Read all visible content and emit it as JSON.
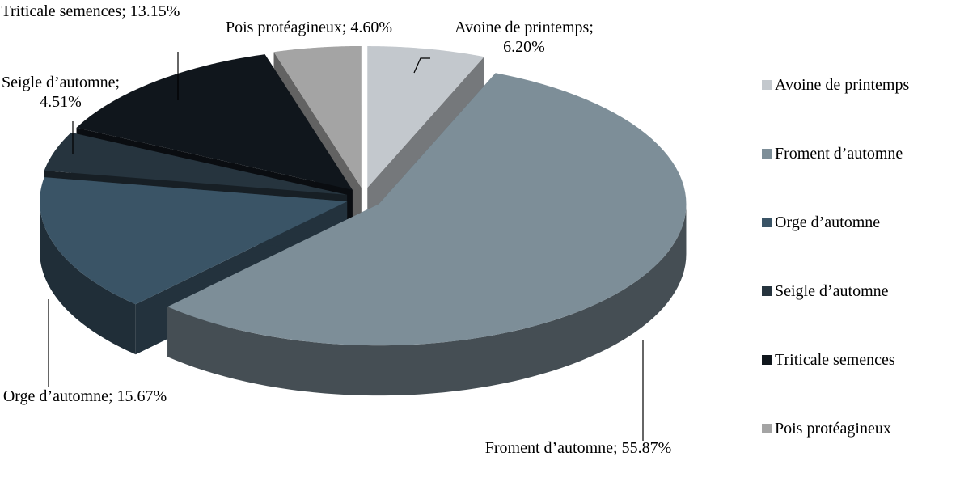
{
  "chart_data": {
    "type": "pie",
    "categories": [
      "Avoine de printemps",
      "Froment d’automne",
      "Orge d’automne",
      "Seigle d’automne",
      "Triticale semences",
      "Pois protéagineux"
    ],
    "values": [
      6.2,
      55.87,
      15.67,
      4.51,
      13.15,
      4.6
    ],
    "value_labels": [
      "Avoine de printemps; 6.20%",
      "Froment d’automne; 55.87%",
      "Orge d’automne; 15.67%",
      "Seigle d’automne; 4.51%",
      "Triticale semences; 13.15%",
      "Pois protéagineux; 4.60%"
    ],
    "colors": [
      "#c3c8cd",
      "#7d8e98",
      "#3a5466",
      "#26343e",
      "#10161c",
      "#a4a4a4"
    ],
    "legend": "right"
  }
}
